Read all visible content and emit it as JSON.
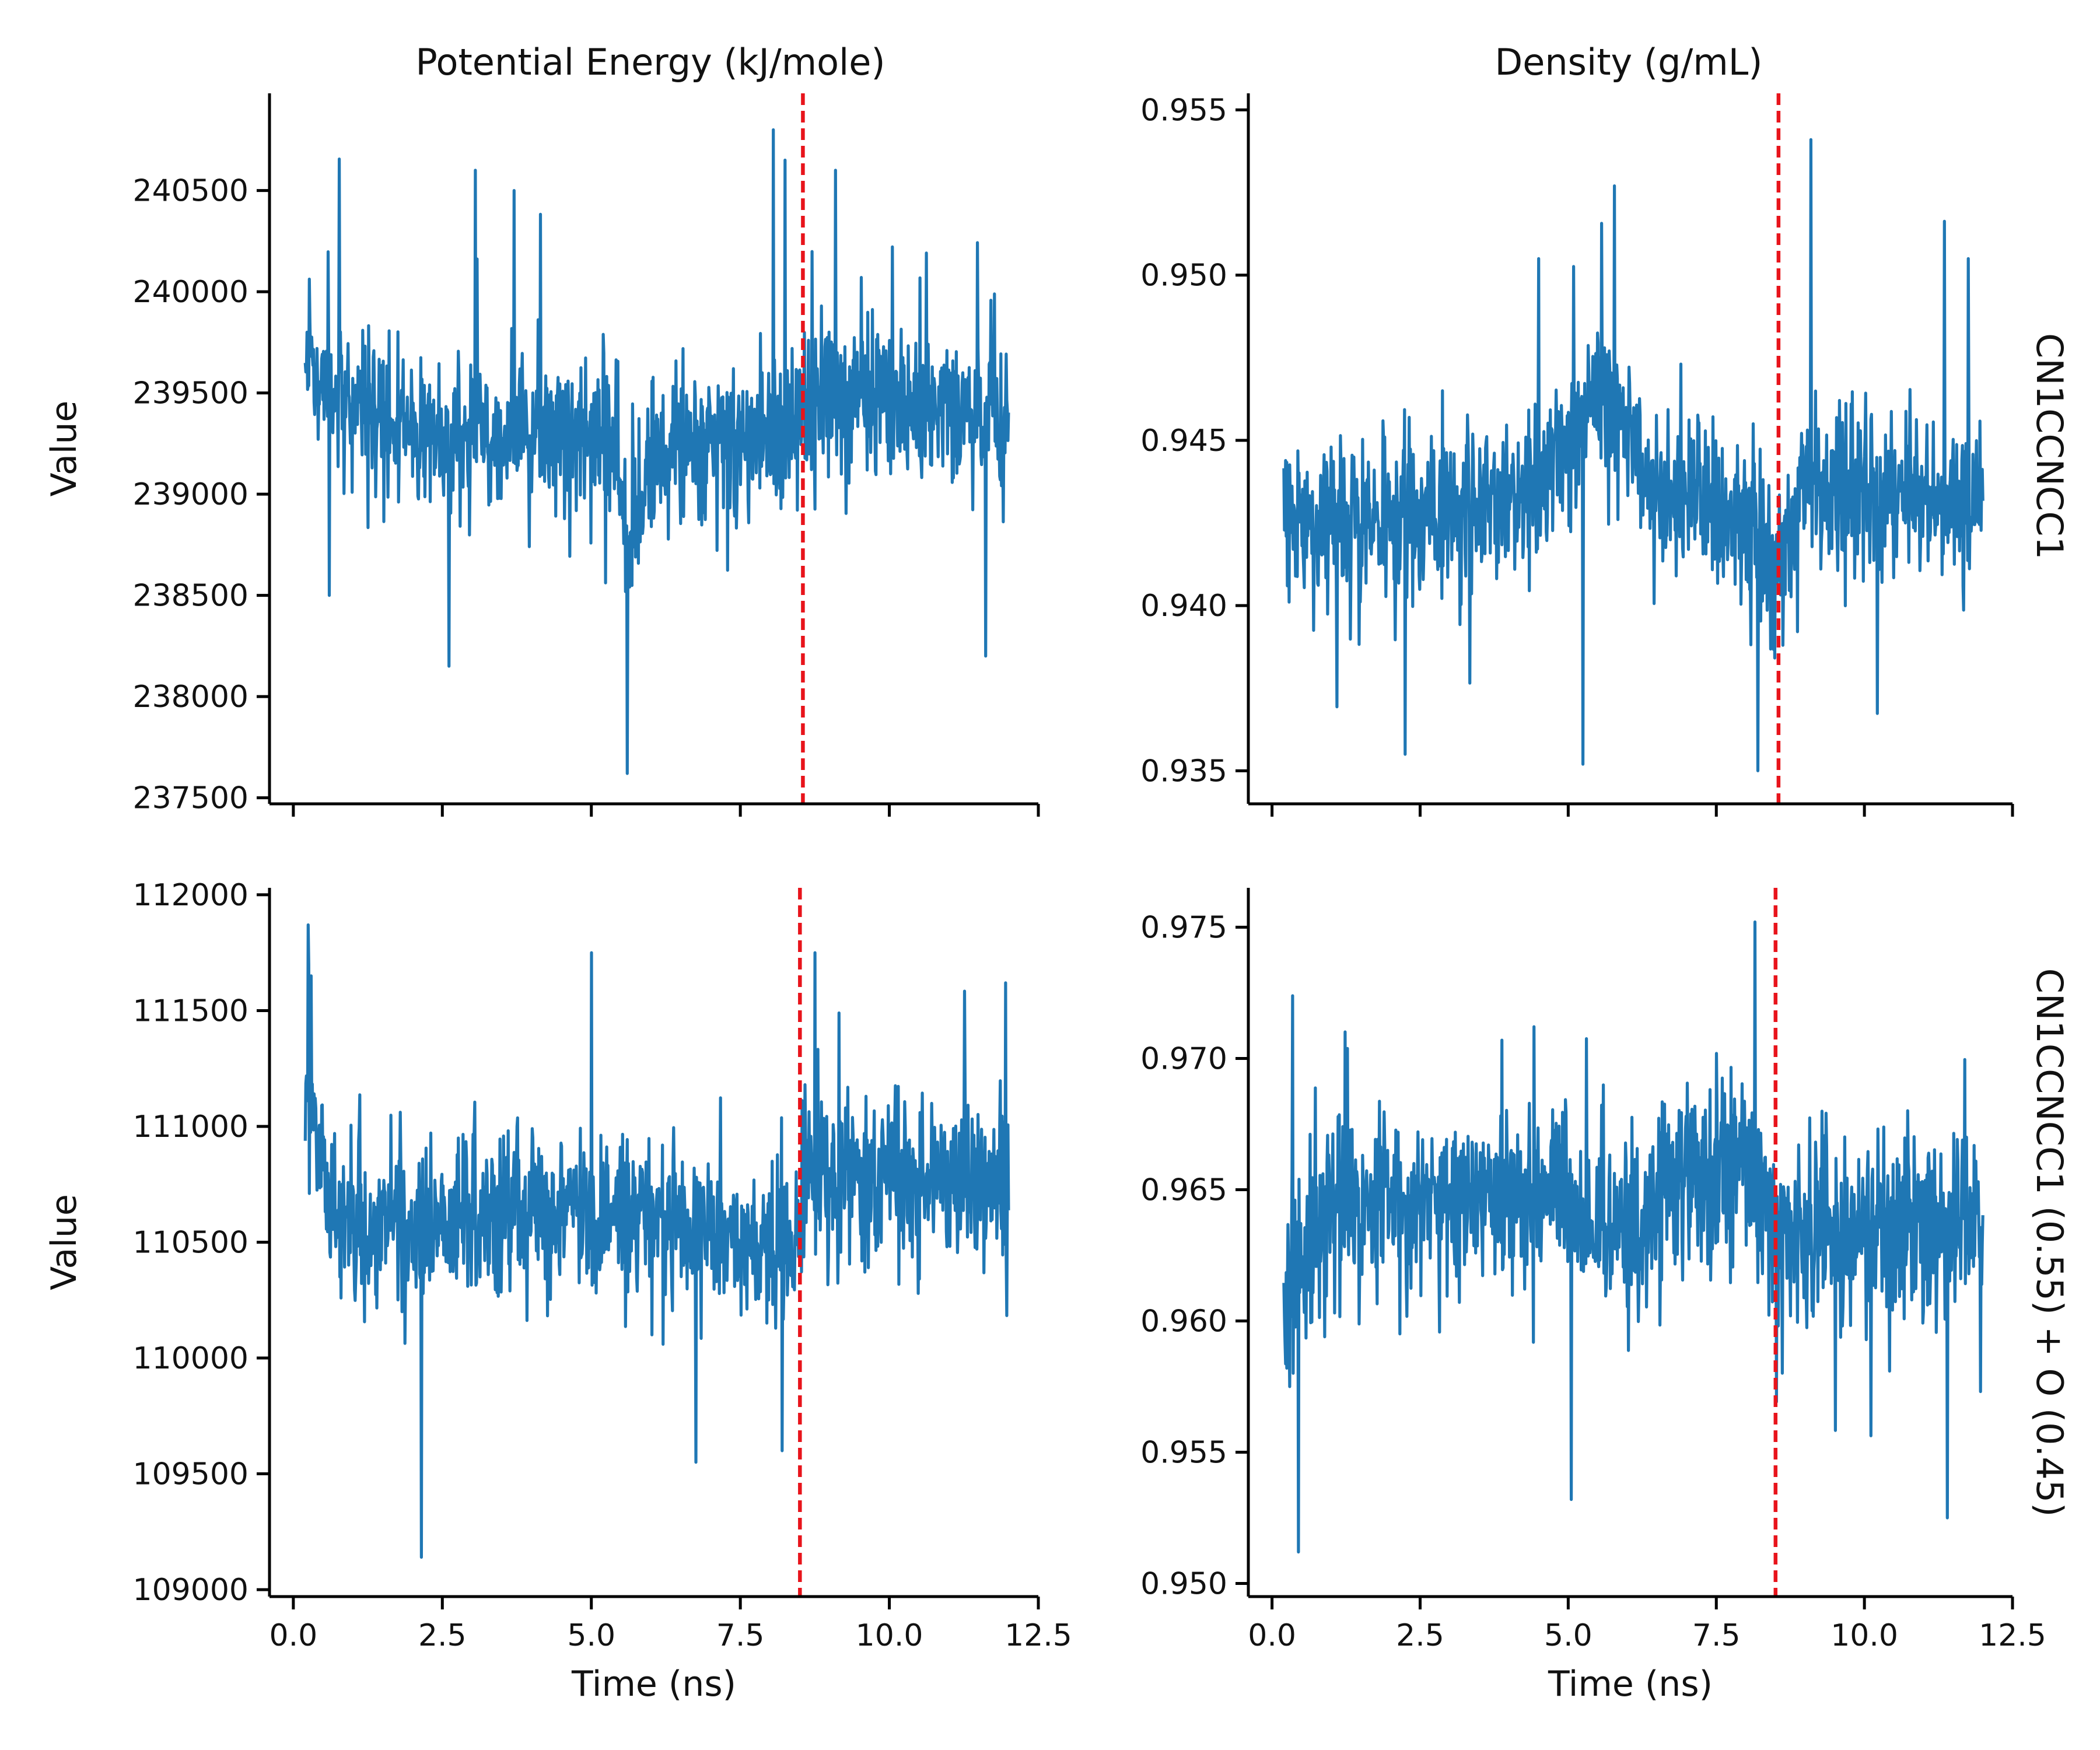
{
  "figure": {
    "columns": [
      "Potential Energy (kJ/mole)",
      "Density (g/mL)"
    ],
    "rows": [
      "CN1CCNCC1",
      "CN1CCNCC1 (0.55) + O (0.45)"
    ],
    "ylabel": "Value",
    "xlabel": "Time (ns)"
  },
  "colors": {
    "series": "#1f77b4",
    "marker_line": "#e8141b",
    "axis": "#000000"
  },
  "chart_data": [
    {
      "type": "line",
      "column_title": "Potential Energy (kJ/mole)",
      "row_label": "CN1CCNCC1",
      "ylabel": "Value",
      "xlabel": "",
      "xlim": [
        -0.4,
        12.5
      ],
      "ylim": [
        237470,
        240980
      ],
      "xticks": [
        0.0,
        2.5,
        5.0,
        7.5,
        10.0,
        12.5
      ],
      "show_xtick_labels": false,
      "yticks": [
        237500,
        238000,
        238500,
        239000,
        239500,
        240000,
        240500
      ],
      "ytick_labels": [
        "237500",
        "238000",
        "238500",
        "239000",
        "239500",
        "240000",
        "240500"
      ],
      "vline_x": 8.55,
      "x_start": 0.2,
      "x_end": 12.0,
      "n_points": 1200,
      "seed": 11,
      "base": 239400,
      "noise": 300,
      "spike": 1.0,
      "waypoints": [
        [
          0.2,
          239700
        ],
        [
          0.5,
          239550
        ],
        [
          2.0,
          239300
        ],
        [
          5.4,
          239300
        ],
        [
          5.6,
          238750
        ],
        [
          6.0,
          239200
        ],
        [
          8.4,
          239300
        ],
        [
          8.6,
          239500
        ],
        [
          12.0,
          239350
        ]
      ],
      "events": [
        [
          0.23,
          239800
        ],
        [
          0.6,
          238500
        ],
        [
          2.61,
          238150
        ],
        [
          3.05,
          240600
        ],
        [
          3.7,
          240500
        ],
        [
          5.6,
          237620
        ],
        [
          8.05,
          240800
        ],
        [
          8.25,
          240650
        ],
        [
          9.1,
          240600
        ],
        [
          11.62,
          238200
        ]
      ],
      "legend": "none",
      "grid": false
    },
    {
      "type": "line",
      "column_title": "Density (g/mL)",
      "row_label": "CN1CCNCC1",
      "ylabel": "",
      "xlabel": "",
      "xlim": [
        -0.4,
        12.5
      ],
      "ylim": [
        0.934,
        0.9555
      ],
      "xticks": [
        0.0,
        2.5,
        5.0,
        7.5,
        10.0,
        12.5
      ],
      "show_xtick_labels": false,
      "yticks": [
        0.935,
        0.94,
        0.945,
        0.95,
        0.955
      ],
      "ytick_labels": [
        "0.935",
        "0.940",
        "0.945",
        "0.950",
        "0.955"
      ],
      "vline_x": 8.55,
      "x_start": 0.2,
      "x_end": 12.0,
      "n_points": 1200,
      "seed": 29,
      "base": 0.943,
      "noise": 0.0019,
      "spike": 1.0,
      "waypoints": [
        [
          0.2,
          0.9425
        ],
        [
          2.0,
          0.9425
        ],
        [
          4.5,
          0.9435
        ],
        [
          5.6,
          0.9465
        ],
        [
          6.5,
          0.9435
        ],
        [
          8.0,
          0.9425
        ],
        [
          8.5,
          0.941
        ],
        [
          9.0,
          0.9435
        ],
        [
          12.0,
          0.943
        ]
      ],
      "events": [
        [
          2.25,
          0.9355
        ],
        [
          5.25,
          0.9352
        ],
        [
          5.78,
          0.9527
        ],
        [
          8.2,
          0.935
        ],
        [
          9.1,
          0.9541
        ],
        [
          11.75,
          0.9505
        ],
        [
          4.5,
          0.9505
        ]
      ],
      "legend": "none",
      "grid": false
    },
    {
      "type": "line",
      "column_title": "Potential Energy (kJ/mole)",
      "row_label": "CN1CCNCC1 (0.55) + O (0.45)",
      "ylabel": "Value",
      "xlabel": "Time (ns)",
      "xlim": [
        -0.4,
        12.5
      ],
      "ylim": [
        108970,
        112030
      ],
      "xticks": [
        0.0,
        2.5,
        5.0,
        7.5,
        10.0,
        12.5
      ],
      "xtick_labels": [
        "0.0",
        "2.5",
        "5.0",
        "7.5",
        "10.0",
        "12.5"
      ],
      "show_xtick_labels": true,
      "yticks": [
        109000,
        109500,
        110000,
        110500,
        111000,
        111500,
        112000
      ],
      "ytick_labels": [
        "109000",
        "109500",
        "110000",
        "110500",
        "111000",
        "111500",
        "112000"
      ],
      "vline_x": 8.5,
      "x_start": 0.2,
      "x_end": 12.0,
      "n_points": 1200,
      "seed": 47,
      "base": 110600,
      "noise": 260,
      "spike": 1.0,
      "waypoints": [
        [
          0.2,
          111300
        ],
        [
          0.4,
          110900
        ],
        [
          0.8,
          110600
        ],
        [
          2.5,
          110550
        ],
        [
          5.0,
          110650
        ],
        [
          8.4,
          110450
        ],
        [
          8.6,
          110800
        ],
        [
          12.0,
          110750
        ]
      ],
      "events": [
        [
          0.25,
          111870
        ],
        [
          0.3,
          111650
        ],
        [
          2.15,
          109140
        ],
        [
          5.0,
          111750
        ],
        [
          6.75,
          109550
        ],
        [
          8.2,
          109600
        ],
        [
          8.75,
          111750
        ],
        [
          11.95,
          111620
        ]
      ],
      "legend": "none",
      "grid": false
    },
    {
      "type": "line",
      "column_title": "Density (g/mL)",
      "row_label": "CN1CCNCC1 (0.55) + O (0.45)",
      "ylabel": "",
      "xlabel": "Time (ns)",
      "xlim": [
        -0.4,
        12.5
      ],
      "ylim": [
        0.9495,
        0.9765
      ],
      "xticks": [
        0.0,
        2.5,
        5.0,
        7.5,
        10.0,
        12.5
      ],
      "xtick_labels": [
        "0.0",
        "2.5",
        "5.0",
        "7.5",
        "10.0",
        "12.5"
      ],
      "show_xtick_labels": true,
      "yticks": [
        0.95,
        0.955,
        0.96,
        0.965,
        0.97,
        0.975
      ],
      "ytick_labels": [
        "0.950",
        "0.955",
        "0.960",
        "0.965",
        "0.970",
        "0.975"
      ],
      "vline_x": 8.5,
      "x_start": 0.2,
      "x_end": 12.0,
      "n_points": 1200,
      "seed": 83,
      "base": 0.9645,
      "noise": 0.0027,
      "spike": 1.0,
      "waypoints": [
        [
          0.2,
          0.9605
        ],
        [
          0.5,
          0.9625
        ],
        [
          1.0,
          0.9645
        ],
        [
          5.0,
          0.9645
        ],
        [
          5.4,
          0.963
        ],
        [
          7.0,
          0.9655
        ],
        [
          8.1,
          0.966
        ],
        [
          8.5,
          0.9635
        ],
        [
          9.0,
          0.9635
        ],
        [
          12.0,
          0.9635
        ]
      ],
      "events": [
        [
          0.45,
          0.9512
        ],
        [
          5.05,
          0.9532
        ],
        [
          8.15,
          0.9752
        ],
        [
          11.4,
          0.9525
        ],
        [
          0.3,
          0.9575
        ]
      ],
      "legend": "none",
      "grid": false
    }
  ]
}
